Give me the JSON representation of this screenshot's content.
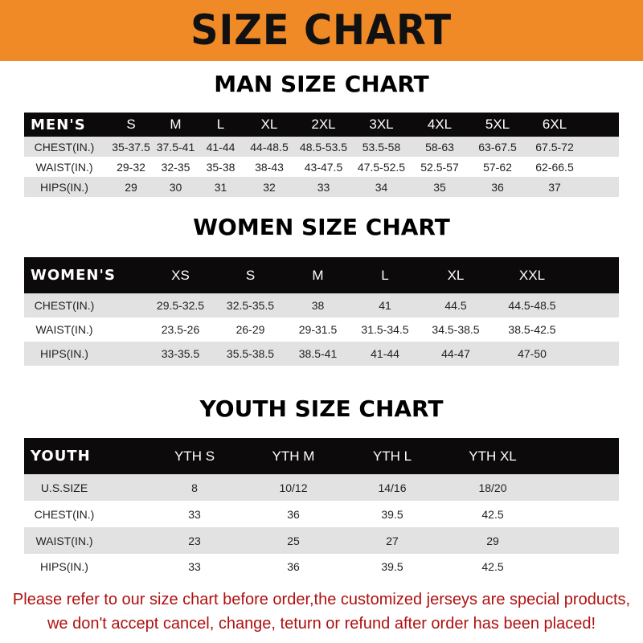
{
  "banner": "SIZE CHART",
  "men": {
    "title": "MAN SIZE CHART",
    "header": [
      "MEN'S",
      "S",
      "M",
      "L",
      "XL",
      "2XL",
      "3XL",
      "4XL",
      "5XL",
      "6XL"
    ],
    "rows": [
      [
        "CHEST(IN.)",
        "35-37.5",
        "37.5-41",
        "41-44",
        "44-48.5",
        "48.5-53.5",
        "53.5-58",
        "58-63",
        "63-67.5",
        "67.5-72"
      ],
      [
        "WAIST(IN.)",
        "29-32",
        "32-35",
        "35-38",
        "38-43",
        "43-47.5",
        "47.5-52.5",
        "52.5-57",
        "57-62",
        "62-66.5"
      ],
      [
        "HIPS(IN.)",
        "29",
        "30",
        "31",
        "32",
        "33",
        "34",
        "35",
        "36",
        "37"
      ]
    ]
  },
  "women": {
    "title": "WOMEN SIZE CHART",
    "header": [
      "WOMEN'S",
      "XS",
      "S",
      "M",
      "L",
      "XL",
      "XXL"
    ],
    "rows": [
      [
        "CHEST(IN.)",
        "29.5-32.5",
        "32.5-35.5",
        "38",
        "41",
        "44.5",
        "44.5-48.5"
      ],
      [
        "WAIST(IN.)",
        "23.5-26",
        "26-29",
        "29-31.5",
        "31.5-34.5",
        "34.5-38.5",
        "38.5-42.5"
      ],
      [
        "HIPS(IN.)",
        "33-35.5",
        "35.5-38.5",
        "38.5-41",
        "41-44",
        "44-47",
        "47-50"
      ]
    ]
  },
  "youth": {
    "title": "YOUTH SIZE CHART",
    "header": [
      "YOUTH",
      "YTH S",
      "YTH M",
      "YTH L",
      "YTH XL"
    ],
    "rows": [
      [
        "U.S.SIZE",
        "8",
        "10/12",
        "14/16",
        "18/20"
      ],
      [
        "CHEST(IN.)",
        "33",
        "36",
        "39.5",
        "42.5"
      ],
      [
        "WAIST(IN.)",
        "23",
        "25",
        "27",
        "29"
      ],
      [
        "HIPS(IN.)",
        "33",
        "36",
        "39.5",
        "42.5"
      ]
    ]
  },
  "notice": {
    "line1": "Please refer to our size chart before order,the customized jerseys are special products,",
    "line2": "we don't accept cancel, change, teturn or refund after order has been placed!"
  },
  "colors": {
    "banner": "#ef8a26",
    "header_row": "#0c0a0a",
    "stripe": "#e2e2e2",
    "notice": "#b01010"
  }
}
